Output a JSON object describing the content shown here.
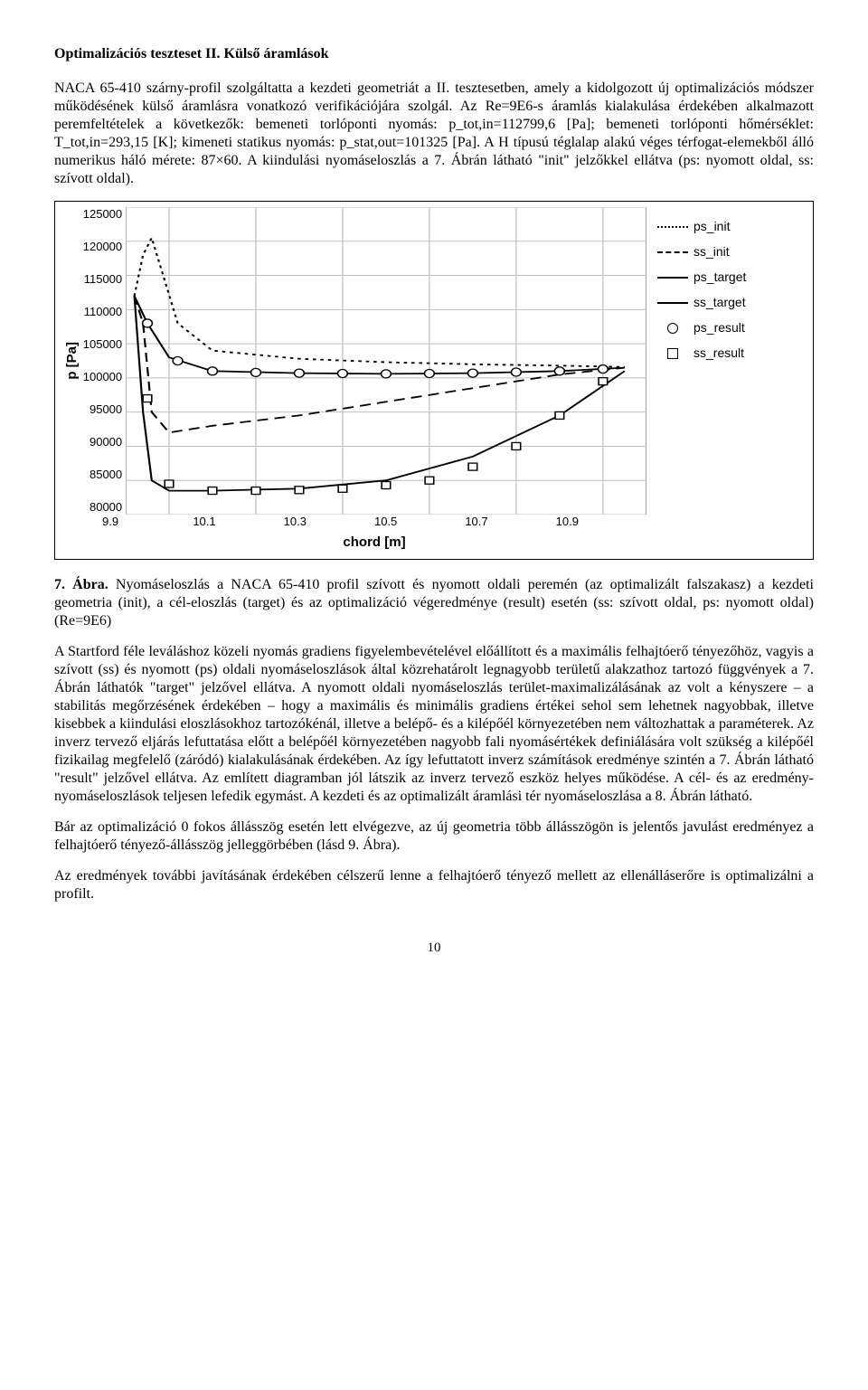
{
  "section_title": "Optimalizációs teszteset II. Külső áramlások",
  "para1": "NACA 65-410 szárny-profil szolgáltatta a kezdeti geometriát a II. tesztesetben, amely a kidolgozott új optimalizációs módszer működésének külső áramlásra vonatkozó verifikációjára szolgál. Az Re=9E6-s áramlás kialakulása érdekében alkalmazott peremfeltételek a következők: bemeneti torlóponti nyomás: p_tot,in=112799,6 [Pa]; bemeneti torlóponti hőmérséklet: T_tot,in=293,15 [K]; kimeneti statikus nyomás: p_stat,out=101325 [Pa]. A H típusú téglalap alakú véges térfogat-elemekből álló numerikus háló mérete: 87×60. A kiindulási nyomáseloszlás a 7. Ábrán látható \"init\" jelzőkkel ellátva (ps: nyomott oldal, ss: szívott oldal).",
  "caption": {
    "label": "7. Ábra.",
    "text": "Nyomáseloszlás a NACA 65-410 profil szívott és nyomott oldali peremén (az optimalizált falszakasz) a kezdeti geometria (init), a cél-eloszlás (target) és az optimalizáció végeredménye (result) esetén (ss: szívott oldal, ps: nyomott oldal) (Re=9E6)"
  },
  "para2": "A Startford féle leváláshoz közeli nyomás gradiens figyelembevételével előállított és a maximális felhajtóerő tényezőhöz, vagyis a szívott (ss) és nyomott (ps) oldali nyomáseloszlások által közrehatárolt legnagyobb területű alakzathoz tartozó függvények a 7. Ábrán láthatók \"target\" jelzővel ellátva. A nyomott oldali nyomáseloszlás terület-maximalizálásának az volt a kényszere – a stabilitás megőrzésének érdekében – hogy a maximális és minimális gradiens értékei sehol sem lehetnek nagyobbak, illetve kisebbek a kiindulási eloszlásokhoz tartozókénál, illetve a belépő- és a kilépőél környezetében nem változhattak a paraméterek. Az inverz tervező eljárás lefuttatása előtt a belépőél környezetében nagyobb fali nyomásértékek definiálására volt szükség a kilépőél fizikailag megfelelő (záródó) kialakulásának érdekében. Az így lefuttatott inverz számítások eredménye szintén a 7. Ábrán látható \"result\" jelzővel ellátva. Az említett diagramban jól látszik az inverz tervező eszköz helyes működése. A cél- és az eredmény-nyomáseloszlások teljesen lefedik egymást. A kezdeti és az optimalizált áramlási tér nyomáseloszlása a 8. Ábrán látható.",
  "para3": "Bár az optimalizáció 0 fokos állásszög esetén lett elvégezve, az új geometria több állásszögön is jelentős javulást eredményez a felhajtóerő tényező-állásszög jelleggörbében (lásd 9. Ábra).",
  "para4": "Az eredmények további javításának érdekében célszerű lenne a felhajtóerő tényező mellett az ellenálláserőre is optimalizálni a profilt.",
  "page_number": "10",
  "chart": {
    "type": "line",
    "xlabel": "chord [m]",
    "ylabel": "p [Pa]",
    "xlim": [
      9.8,
      11.0
    ],
    "ylim": [
      80000,
      125000
    ],
    "ytick_step": 5000,
    "yticks": [
      "125000",
      "120000",
      "115000",
      "110000",
      "105000",
      "100000",
      "95000",
      "90000",
      "85000",
      "80000"
    ],
    "xticks": [
      "9.9",
      "10.1",
      "10.3",
      "10.5",
      "10.7",
      "10.9"
    ],
    "grid_color": "#bfbfbf",
    "background_color": "#ffffff",
    "border_color": "#808080",
    "legend": [
      {
        "label": "ps_init",
        "style": "dash-short",
        "color": "#000000"
      },
      {
        "label": "ss_init",
        "style": "dash-long",
        "color": "#000000"
      },
      {
        "label": "ps_target",
        "style": "solid",
        "color": "#000000"
      },
      {
        "label": "ss_target",
        "style": "solid",
        "color": "#000000"
      },
      {
        "label": "ps_result",
        "style": "circle",
        "color": "#000000"
      },
      {
        "label": "ss_result",
        "style": "square",
        "color": "#000000"
      }
    ],
    "series": {
      "ps_init": {
        "x": [
          9.82,
          9.84,
          9.86,
          9.92,
          10.0,
          10.2,
          10.4,
          10.6,
          10.8,
          10.95
        ],
        "y": [
          112000,
          118000,
          120500,
          108000,
          104000,
          102800,
          102300,
          102000,
          101800,
          101600
        ]
      },
      "ss_init": {
        "x": [
          9.82,
          9.84,
          9.86,
          9.9,
          10.0,
          10.2,
          10.4,
          10.6,
          10.8,
          10.95
        ],
        "y": [
          112000,
          108000,
          95000,
          92000,
          93000,
          94500,
          96500,
          98500,
          100500,
          101500
        ]
      },
      "ps_target": {
        "x": [
          9.82,
          9.85,
          9.9,
          10.0,
          10.2,
          10.4,
          10.6,
          10.8,
          10.95
        ],
        "y": [
          112000,
          108000,
          103000,
          101000,
          100700,
          100600,
          100700,
          101000,
          101500
        ]
      },
      "ss_target": {
        "x": [
          9.82,
          9.84,
          9.86,
          9.9,
          10.0,
          10.2,
          10.4,
          10.6,
          10.8,
          10.95
        ],
        "y": [
          112000,
          95000,
          85000,
          83500,
          83500,
          83800,
          85000,
          88500,
          94500,
          101000
        ]
      },
      "ps_result": {
        "x": [
          9.85,
          9.92,
          10.0,
          10.1,
          10.2,
          10.3,
          10.4,
          10.5,
          10.6,
          10.7,
          10.8,
          10.9
        ],
        "y": [
          108000,
          102500,
          101000,
          100800,
          100700,
          100650,
          100600,
          100650,
          100700,
          100850,
          101000,
          101300
        ]
      },
      "ss_result": {
        "x": [
          9.85,
          9.9,
          10.0,
          10.1,
          10.2,
          10.3,
          10.4,
          10.5,
          10.6,
          10.7,
          10.8,
          10.9
        ],
        "y": [
          97000,
          84500,
          83500,
          83500,
          83600,
          83800,
          84300,
          85000,
          87000,
          90000,
          94500,
          99500
        ]
      }
    },
    "label_fontsize": 15,
    "tick_fontsize": 13,
    "legend_fontsize": 14,
    "line_width": 1.8
  }
}
